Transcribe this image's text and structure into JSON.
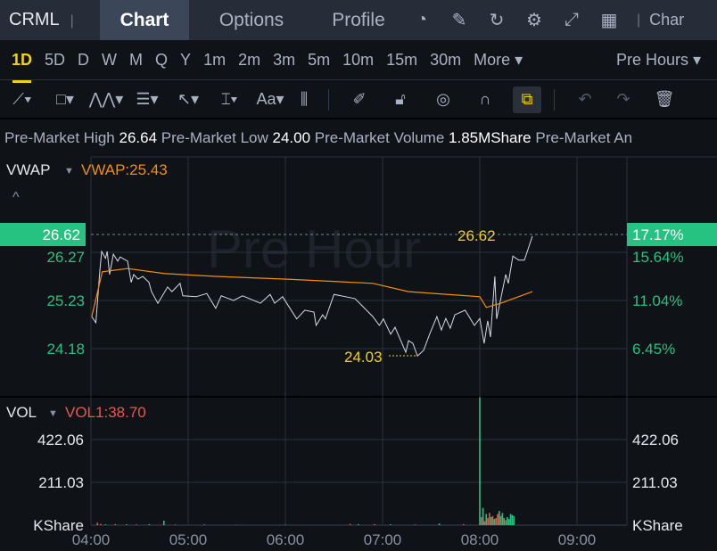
{
  "header": {
    "symbol": "CRML",
    "tabs": [
      "Chart",
      "Options",
      "Profile"
    ],
    "active_tab": "Chart",
    "icons": [
      "speed-gauge-icon",
      "edit-icon",
      "refresh-icon",
      "gear-icon",
      "fullscreen-icon",
      "grid-layout-icon"
    ],
    "right_label": "Char"
  },
  "timeframes": {
    "items": [
      "1D",
      "5D",
      "D",
      "W",
      "M",
      "Q",
      "Y",
      "1m",
      "2m",
      "3m",
      "5m",
      "10m",
      "15m",
      "30m",
      "More ▾"
    ],
    "active": "1D",
    "session": "Pre Hours ▾"
  },
  "toolbar": {
    "tools": [
      "trend-line-icon",
      "rectangle-icon",
      "pattern-icon",
      "fib-icon",
      "arrow-icon",
      "measure-icon",
      "text-icon",
      "candles-icon",
      "pen-icon",
      "unlock-icon",
      "eye-icon",
      "magnet-icon",
      "link-icon",
      "undo-icon",
      "redo-icon",
      "trash-icon"
    ]
  },
  "info": {
    "high_label": "Pre-Market High",
    "high": "26.64",
    "low_label": "Pre-Market Low",
    "low": "24.00",
    "volume_label": "Pre-Market Volume",
    "volume": "1.85MShare",
    "more": "Pre-Market An"
  },
  "price_panel": {
    "indicator": "VWAP",
    "vwap_label": "VWAP:25.43",
    "watermark": "Pre Hour",
    "current_price": "26.62",
    "current_pct": "17.17%",
    "high_marker": "26.62",
    "low_marker": "24.03",
    "left_ticks": [
      "26.27",
      "25.23",
      "24.18"
    ],
    "right_ticks": [
      "15.64%",
      "11.04%",
      "6.45%"
    ]
  },
  "volume_panel": {
    "indicator": "VOL",
    "vol_label": "VOL1:38.70",
    "ticks": [
      "422.06",
      "211.03",
      "KShare"
    ]
  },
  "x_ticks": [
    "04:00",
    "05:00",
    "06:00",
    "07:00",
    "08:00",
    "09:00"
  ],
  "colors": {
    "up": "#26c281",
    "down": "#e8584f",
    "vwap": "#f0900a",
    "price": "#d8dbe2",
    "accent": "#f0d215"
  },
  "chart_data": {
    "type": "line",
    "x_unit": "minutes after 04:00",
    "ylim": [
      23.9,
      26.9
    ],
    "price": [
      [
        0.5,
        24.88
      ],
      [
        3,
        24.75
      ],
      [
        5.5,
        25.88
      ],
      [
        6.6,
        26.29
      ],
      [
        9,
        26.14
      ],
      [
        10,
        26.29
      ],
      [
        11.5,
        25.79
      ],
      [
        13.8,
        26.23
      ],
      [
        16.5,
        26.08
      ],
      [
        18,
        26.17
      ],
      [
        22.6,
        26.08
      ],
      [
        24.8,
        25.62
      ],
      [
        26.4,
        25.79
      ],
      [
        29,
        25.69
      ],
      [
        32,
        25.75
      ],
      [
        35.8,
        25.62
      ],
      [
        37.4,
        25.42
      ],
      [
        41.3,
        25.17
      ],
      [
        44.6,
        25.36
      ],
      [
        47.3,
        25.52
      ],
      [
        50,
        25.42
      ],
      [
        55,
        25.6
      ],
      [
        56.7,
        25.33
      ],
      [
        65,
        25.31
      ],
      [
        71.5,
        25.38
      ],
      [
        77,
        25.06
      ],
      [
        80.4,
        25.33
      ],
      [
        88,
        25.23
      ],
      [
        93.6,
        25.33
      ],
      [
        104.6,
        25.17
      ],
      [
        110.6,
        25.36
      ],
      [
        113.4,
        25.17
      ],
      [
        118.3,
        25.31
      ],
      [
        127,
        24.83
      ],
      [
        132,
        25.02
      ],
      [
        137.6,
        24.98
      ],
      [
        139,
        24.69
      ],
      [
        143,
        24.92
      ],
      [
        144.7,
        24.83
      ],
      [
        150,
        25.36
      ],
      [
        163,
        25.27
      ],
      [
        174,
        24.88
      ],
      [
        178,
        24.69
      ],
      [
        180.5,
        24.83
      ],
      [
        185,
        24.5
      ],
      [
        187.7,
        24.65
      ],
      [
        194.3,
        24.11
      ],
      [
        196,
        24.36
      ],
      [
        198.7,
        24.3
      ],
      [
        201.5,
        24.03
      ],
      [
        205.3,
        24.15
      ],
      [
        209,
        24.5
      ],
      [
        213.5,
        24.88
      ],
      [
        216.3,
        24.59
      ],
      [
        219,
        24.84
      ],
      [
        221.8,
        24.63
      ],
      [
        224.6,
        24.92
      ],
      [
        231,
        25.02
      ],
      [
        236.7,
        24.69
      ],
      [
        240,
        24.84
      ],
      [
        242.7,
        24.3
      ],
      [
        244.9,
        24.79
      ],
      [
        246.6,
        24.44
      ],
      [
        249.3,
        25.75
      ],
      [
        250.4,
        24.83
      ],
      [
        256,
        25.79
      ],
      [
        257.6,
        25.6
      ],
      [
        260.4,
        26.19
      ],
      [
        264,
        26.1
      ],
      [
        267.5,
        26.1
      ],
      [
        269.7,
        26.33
      ],
      [
        272.5,
        26.62
      ]
    ],
    "vwap": [
      [
        0.5,
        24.88
      ],
      [
        7,
        25.85
      ],
      [
        22.6,
        25.92
      ],
      [
        45.7,
        25.81
      ],
      [
        77,
        25.75
      ],
      [
        121,
        25.69
      ],
      [
        174,
        25.6
      ],
      [
        196,
        25.42
      ],
      [
        240,
        25.31
      ],
      [
        244,
        25.08
      ],
      [
        253,
        25.17
      ],
      [
        272.5,
        25.42
      ]
    ],
    "volume_kshare": [
      [
        4,
        12,
        "d"
      ],
      [
        6,
        6,
        "d"
      ],
      [
        9,
        4,
        "u"
      ],
      [
        15,
        5,
        "d"
      ],
      [
        22,
        4,
        "u"
      ],
      [
        28,
        3,
        "d"
      ],
      [
        36,
        5,
        "u"
      ],
      [
        45,
        22,
        "u"
      ],
      [
        52,
        3,
        "d"
      ],
      [
        70,
        3,
        "u"
      ],
      [
        90,
        2,
        "d"
      ],
      [
        120,
        2,
        "u"
      ],
      [
        160,
        6,
        "d"
      ],
      [
        165,
        5,
        "u"
      ],
      [
        175,
        5,
        "d"
      ],
      [
        185,
        4,
        "u"
      ],
      [
        200,
        3,
        "d"
      ],
      [
        215,
        8,
        "u"
      ],
      [
        230,
        5,
        "d"
      ],
      [
        240,
        630,
        "u"
      ],
      [
        241,
        40,
        "d"
      ],
      [
        242,
        85,
        "u"
      ],
      [
        243,
        20,
        "d"
      ],
      [
        244,
        55,
        "u"
      ],
      [
        245,
        35,
        "d"
      ],
      [
        246,
        60,
        "d"
      ],
      [
        247,
        40,
        "u"
      ],
      [
        248,
        45,
        "d"
      ],
      [
        249,
        30,
        "u"
      ],
      [
        250,
        35,
        "d"
      ],
      [
        251,
        55,
        "d"
      ],
      [
        252,
        70,
        "u"
      ],
      [
        253,
        45,
        "d"
      ],
      [
        254,
        60,
        "u"
      ],
      [
        255,
        35,
        "u"
      ],
      [
        256,
        25,
        "d"
      ],
      [
        257,
        40,
        "u"
      ],
      [
        258,
        30,
        "u"
      ],
      [
        259,
        55,
        "u"
      ],
      [
        260,
        50,
        "u"
      ],
      [
        261,
        45,
        "u"
      ]
    ]
  }
}
